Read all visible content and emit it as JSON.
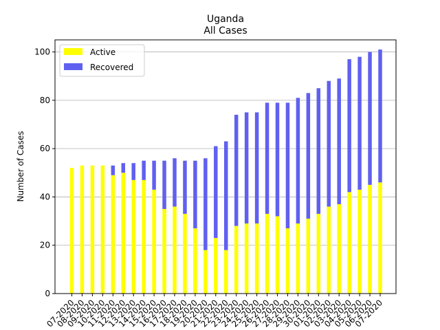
{
  "chart_data": {
    "type": "bar",
    "stacked": true,
    "title": "Uganda",
    "subtitle": "All Cases",
    "xlabel": "",
    "ylabel": "Number of Cases",
    "ylim": [
      0,
      105
    ],
    "yticks": [
      0,
      20,
      40,
      60,
      80,
      100
    ],
    "grid": "y",
    "legend_position": "top-left",
    "categories": [
      "07-2020",
      "08-2020",
      "09-2020",
      "10-2020",
      "11-2020",
      "12-2020",
      "13-2020",
      "14-2020",
      "15-2020",
      "16-2020",
      "17-2020",
      "18-2020",
      "19-2020",
      "20-2020",
      "21-2020",
      "22-2020",
      "23-2020",
      "24-2020",
      "25-2020",
      "26-2020",
      "27-2020",
      "28-2020",
      "29-2020",
      "30-2020",
      "01-2020",
      "02-2020",
      "03-2020",
      "04-2020",
      "05-2020",
      "06-2020",
      "07-2020"
    ],
    "series": [
      {
        "name": "Active",
        "color": "#ffff00",
        "values": [
          52,
          53,
          53,
          53,
          49,
          50,
          47,
          47,
          43,
          35,
          36,
          33,
          27,
          18,
          23,
          18,
          28,
          29,
          29,
          33,
          32,
          27,
          29,
          31,
          33,
          36,
          37,
          42,
          43,
          45,
          46
        ]
      },
      {
        "name": "Recovered",
        "color": "#6060f0",
        "values": [
          0,
          0,
          0,
          0,
          4,
          4,
          7,
          8,
          12,
          20,
          20,
          22,
          28,
          38,
          38,
          45,
          46,
          46,
          46,
          46,
          47,
          52,
          52,
          52,
          52,
          52,
          52,
          55,
          55,
          55,
          55
        ]
      }
    ]
  }
}
